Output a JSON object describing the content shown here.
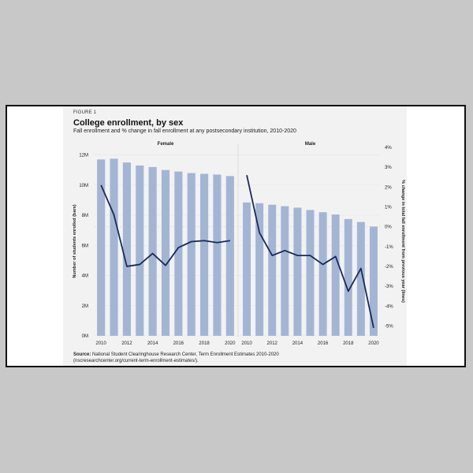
{
  "figure_label": "FIGURE 1",
  "title": "College enrollment, by sex",
  "subtitle": "Fall enrollment and % change in fall enrollment at any postsecondary institution, 2010-2020",
  "source": {
    "label": "Source:",
    "text": "National Student Clearinghouse Research Center, Term Enrollment Estimates 2010-2020",
    "line2": "(nscresearchcenter.org/current-term-enrollment-estimates/)."
  },
  "colors": {
    "bar": "#a4b5d4",
    "line": "#1a2a5a",
    "grid": "#e6e6e6",
    "panel_bg": "#f2f2f2"
  },
  "chart_data": {
    "type": "bar+line",
    "years": [
      2010,
      2011,
      2012,
      2013,
      2014,
      2015,
      2016,
      2017,
      2018,
      2019,
      2020
    ],
    "x_tick_labels": [
      "2010",
      "2012",
      "2014",
      "2016",
      "2018",
      "2020"
    ],
    "left_axis": {
      "label": "Number of students enrolled (bars)",
      "ylim": [
        0,
        12.5
      ],
      "ticks": [
        0,
        2,
        4,
        6,
        8,
        10,
        12
      ],
      "tick_labels": [
        "0M",
        "2M",
        "4M",
        "6M",
        "8M",
        "10M",
        "12M"
      ]
    },
    "right_axis": {
      "label": "% change in total fall enrollment from previous year (lines)",
      "ylim": [
        -5.5,
        4
      ],
      "ticks": [
        -5,
        -4,
        -3,
        -2,
        -1,
        0,
        1,
        2,
        3,
        4
      ],
      "tick_labels": [
        "-5%",
        "-4%",
        "-3%",
        "-2%",
        "-1%",
        "0%",
        "1%",
        "2%",
        "3%",
        "4%"
      ]
    },
    "panels": [
      {
        "name": "Female",
        "bars_millions": [
          11.7,
          11.75,
          11.5,
          11.3,
          11.2,
          11.0,
          10.9,
          10.8,
          10.75,
          10.7,
          10.6
        ],
        "pct_change": [
          2.1,
          0.6,
          -2.0,
          -1.9,
          -1.35,
          -1.95,
          -1.05,
          -0.75,
          -0.7,
          -0.8,
          -0.7
        ]
      },
      {
        "name": "Male",
        "bars_millions": [
          8.85,
          8.8,
          8.7,
          8.6,
          8.5,
          8.35,
          8.2,
          8.05,
          7.75,
          7.55,
          7.25
        ],
        "pct_change": [
          2.6,
          -0.3,
          -1.45,
          -1.2,
          -1.45,
          -1.45,
          -1.9,
          -1.5,
          -3.25,
          -2.1,
          -5.1
        ]
      }
    ],
    "grid": true
  }
}
